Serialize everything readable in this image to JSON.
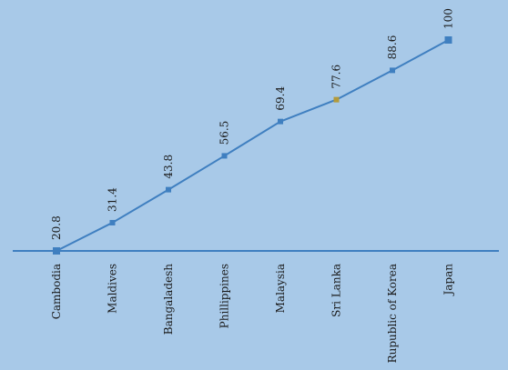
{
  "chart_data": {
    "type": "line",
    "categories": [
      "Cambodia",
      "Maldives",
      "Bangaladesh",
      "Phillippines",
      "Malaysia",
      "Sri Lanka",
      "Rupublic of Korea",
      "Japan"
    ],
    "values": [
      20.8,
      31.4,
      43.8,
      56.5,
      69.4,
      77.6,
      88.6,
      100
    ],
    "data_labels": [
      "20.8",
      "31.4",
      "43.8",
      "56.5",
      "69.4",
      "77.6",
      "88.6",
      "100"
    ],
    "highlight_category": "Sri Lanka",
    "title": "",
    "xlabel": "",
    "ylabel": "",
    "ylim": [
      20.8,
      100
    ],
    "grid": false,
    "legend": "none",
    "colors": {
      "background": "#a8c9e8",
      "line": "#3f7fc0",
      "marker": "#3f7fc0",
      "highlight_marker": "#b39a3a",
      "axis": "#3f7fc0"
    }
  }
}
